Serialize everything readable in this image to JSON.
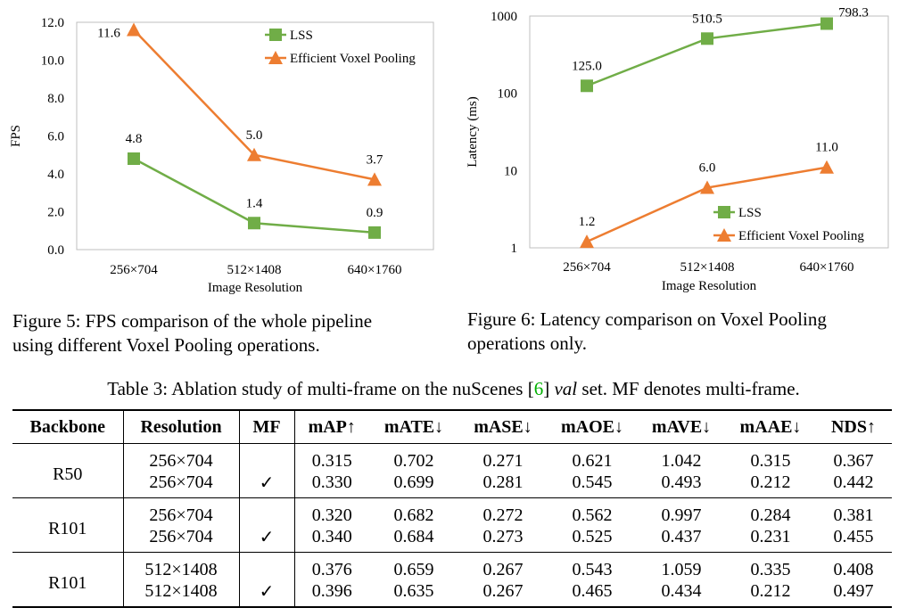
{
  "chart_data": [
    {
      "type": "line",
      "ylabel": "FPS",
      "xlabel": "Image Resolution",
      "categories": [
        "256×704",
        "512×1408",
        "640×1760"
      ],
      "ylim": [
        0,
        12
      ],
      "yticks": [
        "0.0",
        "2.0",
        "4.0",
        "6.0",
        "8.0",
        "10.0",
        "12.0"
      ],
      "log_scale": false,
      "legend_position": "top-right",
      "series": [
        {
          "name": "LSS",
          "values": [
            4.8,
            1.4,
            0.9
          ],
          "labels": [
            "4.8",
            "1.4",
            "0.9"
          ],
          "color": "#70ad47",
          "marker": "square"
        },
        {
          "name": "Efficient Voxel Pooling",
          "values": [
            11.6,
            5.0,
            3.7
          ],
          "labels": [
            "11.6",
            "5.0",
            "3.7"
          ],
          "color": "#ed7d31",
          "marker": "triangle"
        }
      ]
    },
    {
      "type": "line",
      "ylabel": "Latency (ms)",
      "xlabel": "Image Resolution",
      "categories": [
        "256×704",
        "512×1408",
        "640×1760"
      ],
      "ylim": [
        1,
        1000
      ],
      "yticks": [
        "1",
        "10",
        "100",
        "1000"
      ],
      "log_scale": true,
      "legend_position": "bottom-right",
      "series": [
        {
          "name": "LSS",
          "values": [
            125.0,
            510.5,
            798.3
          ],
          "labels": [
            "125.0",
            "510.5",
            "798.3"
          ],
          "color": "#70ad47",
          "marker": "square"
        },
        {
          "name": "Efficient Voxel Pooling",
          "values": [
            1.2,
            6.0,
            11.0
          ],
          "labels": [
            "1.2",
            "6.0",
            "11.0"
          ],
          "color": "#ed7d31",
          "marker": "triangle"
        }
      ]
    }
  ],
  "captions": {
    "fig5_line1": "Figure 5: FPS comparison of the whole pipeline",
    "fig5_line2": "using different Voxel Pooling operations.",
    "fig6_line1": "Figure 6: Latency comparison on Voxel Pooling",
    "fig6_line2": "operations only."
  },
  "table": {
    "caption_pre": "Table 3: Ablation study of multi-frame on the nuScenes [",
    "caption_ref": "6",
    "caption_mid": "] ",
    "caption_italic": "val",
    "caption_post": " set. MF denotes multi-frame.",
    "headers": {
      "backbone": "Backbone",
      "resolution": "Resolution",
      "mf": "MF",
      "map": "mAP↑",
      "mate": "mATE↓",
      "mase": "mASE↓",
      "maoe": "mAOE↓",
      "mave": "mAVE↓",
      "maae": "mAAE↓",
      "nds": "NDS↑"
    },
    "groups": [
      {
        "backbone": "R50",
        "rows": [
          {
            "resolution": "256×704",
            "mf": "",
            "map": "0.315",
            "mate": "0.702",
            "mase": "0.271",
            "maoe": "0.621",
            "mave": "1.042",
            "maae": "0.315",
            "nds": "0.367"
          },
          {
            "resolution": "256×704",
            "mf": "✓",
            "map": "0.330",
            "mate": "0.699",
            "mase": "0.281",
            "maoe": "0.545",
            "mave": "0.493",
            "maae": "0.212",
            "nds": "0.442"
          }
        ]
      },
      {
        "backbone": "R101",
        "rows": [
          {
            "resolution": "256×704",
            "mf": "",
            "map": "0.320",
            "mate": "0.682",
            "mase": "0.272",
            "maoe": "0.562",
            "mave": "0.997",
            "maae": "0.284",
            "nds": "0.381"
          },
          {
            "resolution": "256×704",
            "mf": "✓",
            "map": "0.340",
            "mate": "0.684",
            "mase": "0.273",
            "maoe": "0.525",
            "mave": "0.437",
            "maae": "0.231",
            "nds": "0.455"
          }
        ]
      },
      {
        "backbone": "R101",
        "rows": [
          {
            "resolution": "512×1408",
            "mf": "",
            "map": "0.376",
            "mate": "0.659",
            "mase": "0.267",
            "maoe": "0.543",
            "mave": "1.059",
            "maae": "0.335",
            "nds": "0.408"
          },
          {
            "resolution": "512×1408",
            "mf": "✓",
            "map": "0.396",
            "mate": "0.635",
            "mase": "0.267",
            "maoe": "0.465",
            "mave": "0.434",
            "maae": "0.212",
            "nds": "0.497"
          }
        ]
      }
    ]
  }
}
